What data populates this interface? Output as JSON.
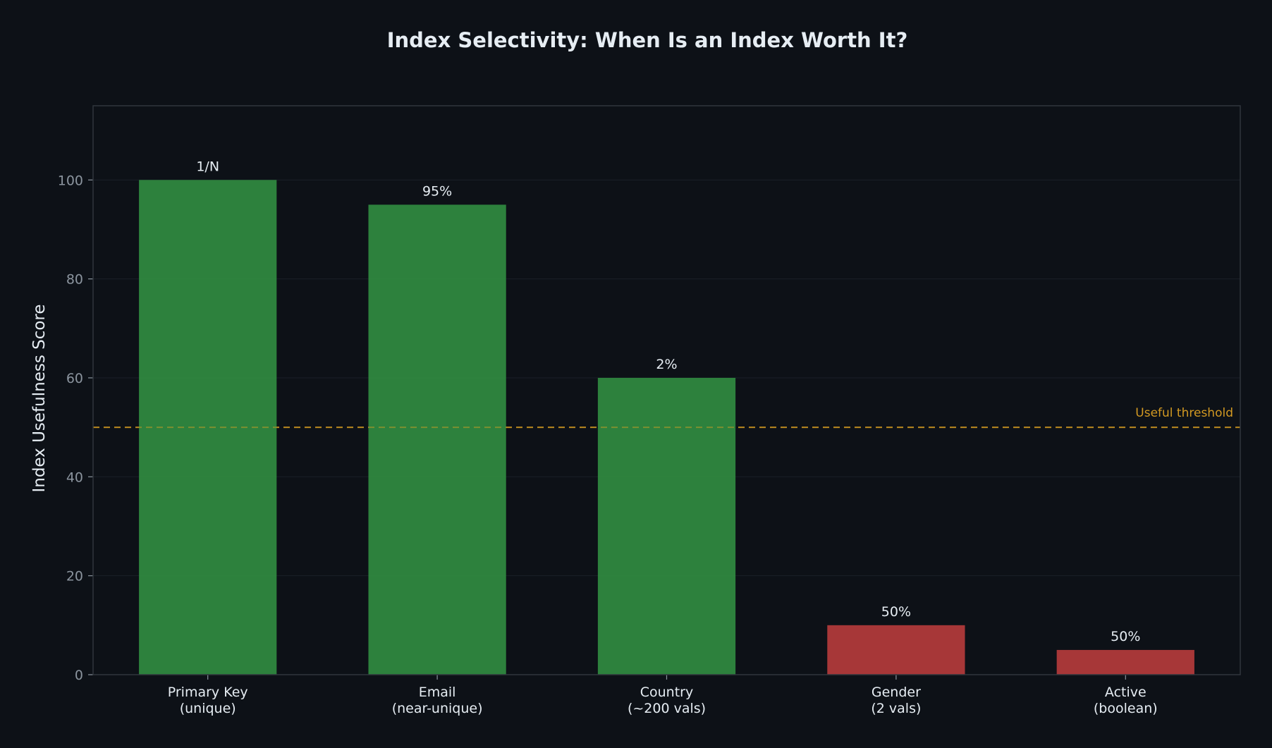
{
  "chart_data": {
    "type": "bar",
    "title": "Index Selectivity: When Is an Index Worth It?",
    "xlabel": "",
    "ylabel": "Index Usefulness Score",
    "ylim": [
      0,
      115
    ],
    "yticks": [
      0,
      20,
      40,
      60,
      80,
      100
    ],
    "grid": true,
    "categories": [
      [
        "Primary Key",
        "(unique)"
      ],
      [
        "Email",
        "(near-unique)"
      ],
      [
        "Country",
        "(~200 vals)"
      ],
      [
        "Gender",
        "(2 vals)"
      ],
      [
        "Active",
        "(boolean)"
      ]
    ],
    "values": [
      100,
      95,
      60,
      10,
      5
    ],
    "bar_labels": [
      "1/N",
      "95%",
      "2%",
      "50%",
      "50%"
    ],
    "bar_colors": [
      "#2f883f",
      "#2f883f",
      "#2f883f",
      "#b03a3a",
      "#b03a3a"
    ],
    "threshold": {
      "value": 50,
      "label": "Useful threshold",
      "color": "#d29922"
    },
    "colors": {
      "background": "#0d1117",
      "frame": "#30363d",
      "grid": "#1b2028",
      "tick_text": "#8b949e",
      "text": "#e6edf3"
    }
  }
}
